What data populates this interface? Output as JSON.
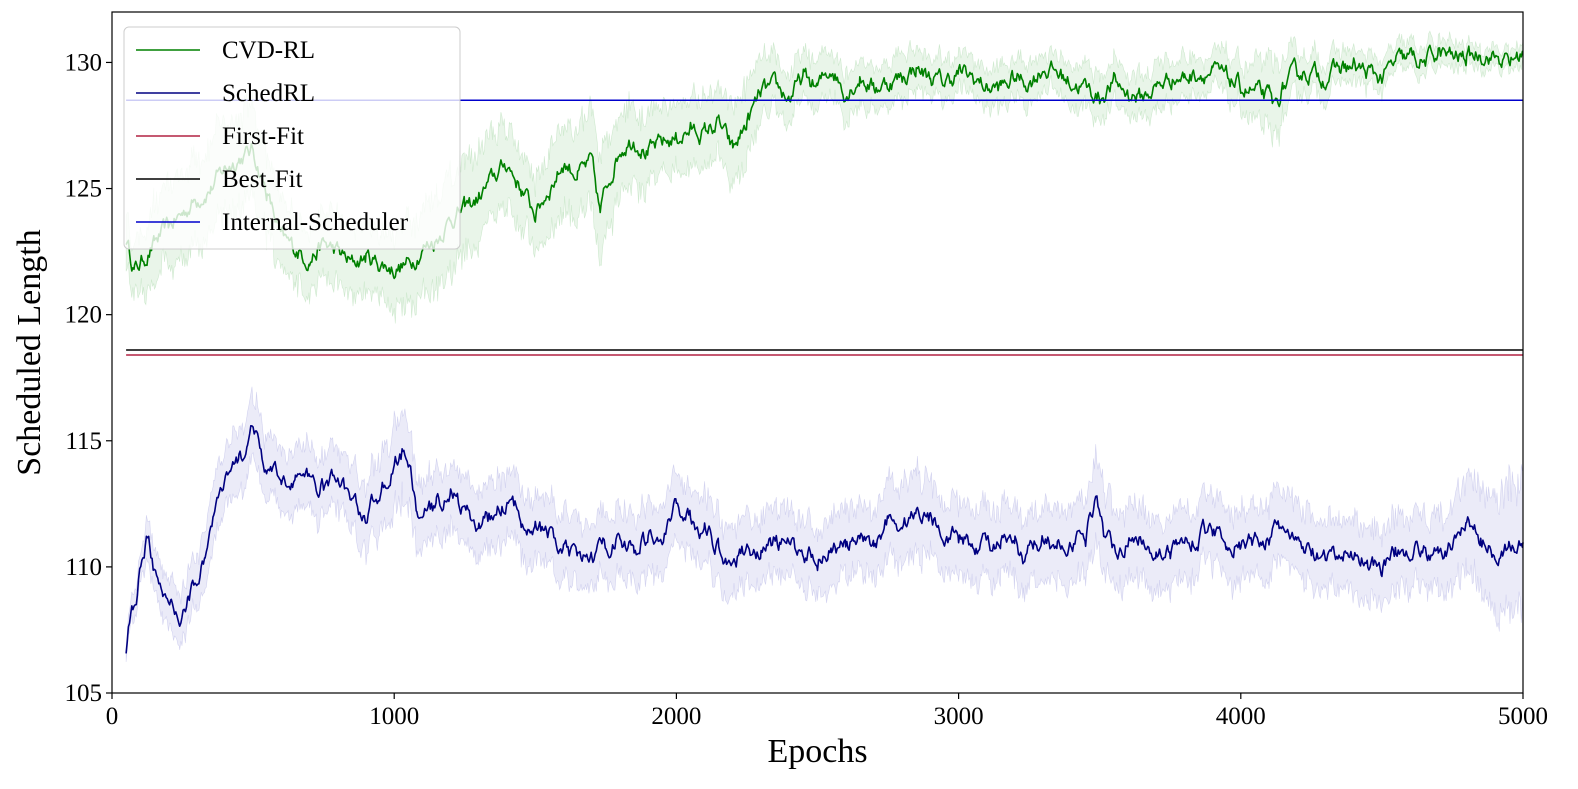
{
  "chart_data": {
    "type": "line",
    "title": "",
    "xlabel": "Epochs",
    "ylabel": "Scheduled Length",
    "xlim": [
      0,
      5000
    ],
    "ylim": [
      105,
      132
    ],
    "xticks": [
      0,
      1000,
      2000,
      3000,
      4000,
      5000
    ],
    "yticks": [
      105,
      110,
      115,
      120,
      125,
      130
    ],
    "grid": false,
    "legend_position": "top-left",
    "series": [
      {
        "name": "CVD-RL",
        "color": "#008000",
        "band_color": "#2ca02c",
        "style": "noisy-with-band",
        "x": [
          50,
          80,
          100,
          150,
          200,
          250,
          300,
          350,
          400,
          450,
          500,
          550,
          600,
          650,
          700,
          750,
          800,
          850,
          900,
          950,
          1000,
          1050,
          1100,
          1150,
          1200,
          1250,
          1300,
          1350,
          1400,
          1450,
          1500,
          1550,
          1600,
          1650,
          1700,
          1730,
          1750,
          1800,
          1850,
          1900,
          1950,
          2000,
          2050,
          2100,
          2150,
          2200,
          2250,
          2300,
          2350,
          2400,
          2450,
          2500,
          2550,
          2600,
          2650,
          2700,
          2750,
          2800,
          2850,
          2900,
          2950,
          3000,
          3050,
          3100,
          3150,
          3200,
          3250,
          3300,
          3350,
          3400,
          3450,
          3500,
          3550,
          3600,
          3650,
          3700,
          3750,
          3800,
          3850,
          3900,
          3950,
          4000,
          4050,
          4100,
          4120,
          4150,
          4200,
          4250,
          4300,
          4350,
          4400,
          4450,
          4500,
          4550,
          4600,
          4650,
          4700,
          4750,
          4800,
          4850,
          4900,
          4950,
          5000
        ],
        "values": [
          123.0,
          121.8,
          122.0,
          122.8,
          123.5,
          124.0,
          124.6,
          125.0,
          125.8,
          126.2,
          126.5,
          124.8,
          123.0,
          122.6,
          122.2,
          122.8,
          122.5,
          122.0,
          122.3,
          122.0,
          121.8,
          122.0,
          122.6,
          123.0,
          123.8,
          124.2,
          124.6,
          125.4,
          126.0,
          125.0,
          124.0,
          125.0,
          126.0,
          125.6,
          126.0,
          124.0,
          125.0,
          126.6,
          127.0,
          126.4,
          126.8,
          127.0,
          127.3,
          127.2,
          127.6,
          126.5,
          127.6,
          128.8,
          129.0,
          128.6,
          129.4,
          129.0,
          129.8,
          128.8,
          129.4,
          129.0,
          129.2,
          129.4,
          129.8,
          129.4,
          129.2,
          129.6,
          129.4,
          129.0,
          129.0,
          129.4,
          129.2,
          129.8,
          129.6,
          129.2,
          129.0,
          128.6,
          129.2,
          128.8,
          128.6,
          129.0,
          129.4,
          129.4,
          129.6,
          129.6,
          129.4,
          129.0,
          128.8,
          128.6,
          128.2,
          129.0,
          129.6,
          129.6,
          129.4,
          129.8,
          129.8,
          129.6,
          129.4,
          130.0,
          130.2,
          130.0,
          130.4,
          130.2,
          130.2,
          130.4,
          130.2,
          130.0,
          130.4
        ],
        "band": [
          1.0,
          1.0,
          1.2,
          1.5,
          1.6,
          1.6,
          1.7,
          1.7,
          1.8,
          1.8,
          1.8,
          1.6,
          1.4,
          1.2,
          1.2,
          1.3,
          1.4,
          1.4,
          1.3,
          1.2,
          1.5,
          1.6,
          1.8,
          1.8,
          1.9,
          1.9,
          1.8,
          1.7,
          1.6,
          1.5,
          1.4,
          1.6,
          1.8,
          1.7,
          1.8,
          2.0,
          1.8,
          1.6,
          1.5,
          1.4,
          1.3,
          1.3,
          1.4,
          1.4,
          1.3,
          1.6,
          1.5,
          1.2,
          1.0,
          1.0,
          0.9,
          0.9,
          0.8,
          1.0,
          0.9,
          0.8,
          0.8,
          0.9,
          0.8,
          0.7,
          0.8,
          0.7,
          0.7,
          0.8,
          0.8,
          0.8,
          0.8,
          0.7,
          0.7,
          0.8,
          0.9,
          0.9,
          0.8,
          0.8,
          0.9,
          0.9,
          0.8,
          0.8,
          0.7,
          0.7,
          0.8,
          0.9,
          1.1,
          1.3,
          1.5,
          1.1,
          0.8,
          0.7,
          0.7,
          0.6,
          0.6,
          0.6,
          0.6,
          0.5,
          0.5,
          0.5,
          0.5,
          0.5,
          0.4,
          0.4,
          0.4,
          0.4,
          0.4
        ]
      },
      {
        "name": "SchedRL",
        "color": "#000080",
        "band_color": "#3f3fbf",
        "style": "noisy-with-band",
        "x": [
          50,
          70,
          90,
          110,
          130,
          150,
          180,
          210,
          240,
          270,
          300,
          330,
          360,
          390,
          420,
          450,
          480,
          500,
          520,
          550,
          600,
          650,
          700,
          750,
          800,
          850,
          900,
          950,
          1000,
          1030,
          1050,
          1080,
          1100,
          1150,
          1200,
          1250,
          1300,
          1350,
          1400,
          1450,
          1500,
          1550,
          1600,
          1650,
          1700,
          1750,
          1800,
          1850,
          1900,
          1950,
          2000,
          2050,
          2100,
          2150,
          2200,
          2250,
          2300,
          2350,
          2400,
          2450,
          2500,
          2550,
          2600,
          2650,
          2700,
          2750,
          2800,
          2850,
          2900,
          2950,
          3000,
          3050,
          3100,
          3150,
          3200,
          3230,
          3260,
          3300,
          3350,
          3400,
          3450,
          3490,
          3520,
          3560,
          3600,
          3650,
          3700,
          3750,
          3800,
          3850,
          3900,
          3950,
          4000,
          4050,
          4100,
          4150,
          4200,
          4250,
          4300,
          4350,
          4400,
          4450,
          4500,
          4550,
          4600,
          4650,
          4700,
          4750,
          4800,
          4850,
          4900,
          4950,
          5000
        ],
        "values": [
          106.5,
          108.5,
          109.0,
          110.5,
          111.6,
          110.0,
          108.5,
          108.5,
          108.0,
          108.8,
          109.5,
          110.5,
          112.0,
          113.0,
          113.6,
          114.2,
          114.8,
          115.8,
          114.6,
          113.8,
          113.4,
          113.6,
          113.4,
          113.2,
          113.6,
          112.6,
          112.0,
          113.0,
          114.0,
          114.6,
          114.2,
          112.2,
          112.0,
          112.4,
          113.0,
          112.2,
          111.6,
          112.0,
          112.6,
          112.0,
          111.6,
          111.2,
          110.6,
          110.2,
          110.4,
          110.8,
          111.2,
          110.6,
          111.2,
          111.0,
          112.4,
          112.0,
          111.4,
          110.8,
          110.2,
          110.8,
          110.6,
          111.0,
          110.8,
          110.6,
          110.4,
          110.8,
          110.8,
          111.0,
          110.8,
          112.0,
          111.6,
          112.2,
          112.0,
          111.4,
          111.2,
          110.8,
          111.0,
          110.8,
          111.0,
          110.0,
          110.8,
          111.2,
          110.8,
          111.0,
          111.2,
          113.0,
          111.0,
          110.8,
          111.0,
          111.2,
          110.6,
          110.6,
          111.0,
          111.2,
          111.6,
          111.0,
          110.8,
          111.0,
          111.2,
          111.6,
          110.8,
          110.6,
          110.2,
          110.4,
          110.6,
          110.2,
          110.0,
          110.6,
          110.8,
          110.6,
          110.4,
          110.8,
          112.0,
          111.0,
          110.6,
          110.8,
          110.8
        ],
        "band": [
          0.3,
          0.5,
          0.6,
          0.7,
          0.8,
          0.8,
          0.9,
          1.0,
          1.0,
          1.0,
          1.0,
          1.1,
          1.2,
          1.2,
          1.2,
          1.2,
          1.2,
          1.2,
          1.2,
          1.2,
          1.2,
          1.2,
          1.2,
          1.2,
          1.2,
          1.2,
          1.3,
          1.5,
          1.7,
          1.8,
          1.6,
          1.4,
          1.3,
          1.3,
          1.3,
          1.3,
          1.3,
          1.3,
          1.3,
          1.3,
          1.3,
          1.3,
          1.3,
          1.3,
          1.3,
          1.3,
          1.3,
          1.3,
          1.3,
          1.3,
          1.3,
          1.3,
          1.3,
          1.3,
          1.3,
          1.3,
          1.3,
          1.3,
          1.3,
          1.3,
          1.3,
          1.3,
          1.3,
          1.3,
          1.4,
          1.5,
          1.5,
          1.6,
          1.5,
          1.4,
          1.4,
          1.4,
          1.4,
          1.4,
          1.4,
          1.4,
          1.4,
          1.4,
          1.4,
          1.5,
          1.6,
          1.8,
          1.6,
          1.5,
          1.4,
          1.4,
          1.4,
          1.4,
          1.4,
          1.4,
          1.4,
          1.4,
          1.4,
          1.4,
          1.4,
          1.4,
          1.4,
          1.4,
          1.4,
          1.4,
          1.4,
          1.4,
          1.4,
          1.4,
          1.4,
          1.4,
          1.5,
          1.6,
          1.8,
          2.0,
          2.2,
          2.4,
          2.6
        ]
      },
      {
        "name": "First-Fit",
        "color": "#b22242",
        "style": "constant",
        "x": [
          50,
          5000
        ],
        "values": [
          118.4,
          118.4
        ]
      },
      {
        "name": "Best-Fit",
        "color": "#000000",
        "style": "constant",
        "x": [
          50,
          5000
        ],
        "values": [
          118.6,
          118.6
        ]
      },
      {
        "name": "Internal-Scheduler",
        "color": "#0000cc",
        "style": "constant",
        "x": [
          50,
          5000
        ],
        "values": [
          128.5,
          128.5
        ]
      }
    ]
  }
}
